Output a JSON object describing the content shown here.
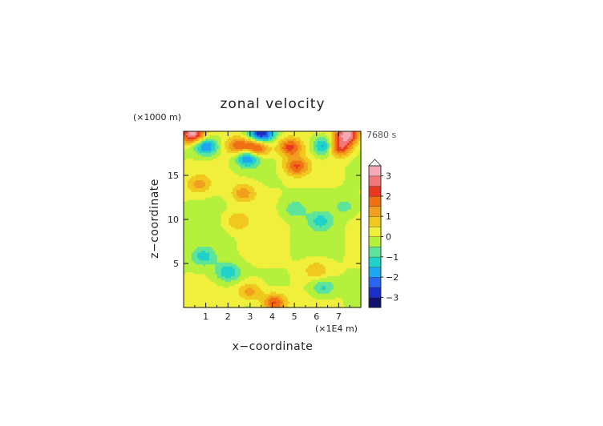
{
  "chart_data": {
    "type": "heatmap",
    "title": "zonal velocity",
    "xlabel": "x−coordinate",
    "ylabel": "z−coordinate",
    "x_unit": "(×1E4 m)",
    "y_unit": "(×1000 m)",
    "time_label": "7680 s",
    "xlim": [
      0,
      8
    ],
    "ylim": [
      0,
      20
    ],
    "x_ticks": [
      "1",
      "2",
      "3",
      "4",
      "5",
      "6",
      "7"
    ],
    "y_ticks": [
      "5",
      "10",
      "15"
    ],
    "colorbar": {
      "levels": [
        -3.5,
        -3,
        -2.5,
        -2,
        -1.5,
        -1,
        -0.5,
        0,
        0.5,
        1,
        1.5,
        2,
        2.5,
        3,
        3.5
      ],
      "tick_labels": [
        "−3",
        "−2",
        "−1",
        "0",
        "1",
        "2",
        "3"
      ],
      "tick_values": [
        -3,
        -2,
        -1,
        0,
        1,
        2,
        3
      ],
      "colors": [
        "#10106e",
        "#1a2ec8",
        "#2a66f0",
        "#1ea6f0",
        "#20d2c8",
        "#5ee49a",
        "#b4f03c",
        "#f0f03c",
        "#f0c81e",
        "#f0a01e",
        "#f07014",
        "#e83820",
        "#f07878",
        "#f4aab4"
      ],
      "extend_max_color": "#ffffff"
    },
    "features": [
      {
        "x": 1.0,
        "z": 18.3,
        "value": -2.3
      },
      {
        "x": 2.9,
        "z": 17.1,
        "value": -2.5
      },
      {
        "x": 2.5,
        "z": 18.3,
        "value": 2.0
      },
      {
        "x": 3.3,
        "z": 18.1,
        "value": 2.8
      },
      {
        "x": 4.8,
        "z": 18.2,
        "value": 2.2
      },
      {
        "x": 5.1,
        "z": 16.0,
        "value": 2.0
      },
      {
        "x": 6.4,
        "z": 18.3,
        "value": -2.3
      },
      {
        "x": 7.0,
        "z": 18.2,
        "value": 2.8
      },
      {
        "x": 0.4,
        "z": 19.7,
        "value": 3.2
      },
      {
        "x": 3.5,
        "z": 19.7,
        "value": -3.0
      },
      {
        "x": 7.4,
        "z": 19.7,
        "value": 3.2
      },
      {
        "x": 0.7,
        "z": 14.0,
        "value": 1.2
      },
      {
        "x": 2.7,
        "z": 13.0,
        "value": 1.3
      },
      {
        "x": 5.0,
        "z": 11.2,
        "value": -0.8
      },
      {
        "x": 6.2,
        "z": 9.8,
        "value": -1.1
      },
      {
        "x": 7.3,
        "z": 11.5,
        "value": -0.7
      },
      {
        "x": 2.4,
        "z": 9.8,
        "value": 1.0
      },
      {
        "x": 0.9,
        "z": 5.8,
        "value": -1.2
      },
      {
        "x": 2.0,
        "z": 4.0,
        "value": -1.5
      },
      {
        "x": 6.0,
        "z": 4.2,
        "value": 1.0
      },
      {
        "x": 6.3,
        "z": 2.3,
        "value": -1.2
      },
      {
        "x": 3.0,
        "z": 1.8,
        "value": 1.3
      },
      {
        "x": 4.1,
        "z": 0.5,
        "value": 2.2
      }
    ]
  }
}
